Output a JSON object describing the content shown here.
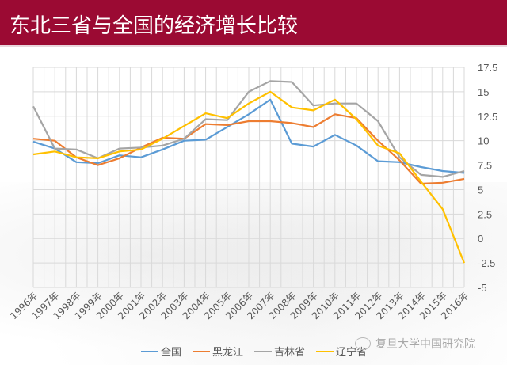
{
  "header": {
    "title": "东北三省与全国的经济增长比较",
    "background_color": "#9b0a33"
  },
  "credit": {
    "icon": "wechat-icon",
    "text": "复旦大学中国研究院"
  },
  "legend": [
    {
      "label": "全国",
      "color": "#5b9bd5"
    },
    {
      "label": "黑龙江",
      "color": "#ed7d31"
    },
    {
      "label": "吉林省",
      "color": "#a5a5a5"
    },
    {
      "label": "辽宁省",
      "color": "#ffc000"
    }
  ],
  "chart_data": {
    "type": "line",
    "title": "东北三省与全国的经济增长比较",
    "xlabel": "",
    "ylabel": "",
    "categories": [
      "1996年",
      "1997年",
      "1998年",
      "1999年",
      "2000年",
      "2001年",
      "2002年",
      "2003年",
      "2004年",
      "2005年",
      "2006年",
      "2007年",
      "2008年",
      "2009年",
      "2010年",
      "2011年",
      "2012年",
      "2013年",
      "2014年",
      "2015年",
      "2016年"
    ],
    "y_ticks": [
      "17.5",
      "15",
      "12.5",
      "10",
      "7.5",
      "5",
      "2.5",
      "0",
      "-2.5",
      "-5"
    ],
    "ylim": [
      -5,
      17.5
    ],
    "y_axis_position": "right",
    "grid": true,
    "legend_position": "bottom",
    "series": [
      {
        "name": "全国",
        "color": "#5b9bd5",
        "values": [
          9.9,
          9.2,
          7.8,
          7.7,
          8.5,
          8.3,
          9.1,
          10.0,
          10.1,
          11.4,
          12.7,
          14.2,
          9.7,
          9.4,
          10.6,
          9.5,
          7.9,
          7.8,
          7.3,
          6.9,
          6.7
        ]
      },
      {
        "name": "黑龙江",
        "color": "#ed7d31",
        "values": [
          10.2,
          10.0,
          8.3,
          7.5,
          8.2,
          9.3,
          10.3,
          10.2,
          11.7,
          11.6,
          12.0,
          12.0,
          11.8,
          11.4,
          12.7,
          12.3,
          10.0,
          8.0,
          5.6,
          5.7,
          6.1
        ]
      },
      {
        "name": "吉林省",
        "color": "#a5a5a5",
        "values": [
          13.5,
          9.2,
          9.1,
          8.2,
          9.2,
          9.3,
          9.5,
          10.2,
          12.2,
          12.1,
          15.0,
          16.1,
          16.0,
          13.6,
          13.8,
          13.8,
          12.0,
          8.3,
          6.5,
          6.3,
          6.9
        ]
      },
      {
        "name": "辽宁省",
        "color": "#ffc000",
        "values": [
          8.6,
          8.9,
          8.3,
          8.2,
          8.9,
          9.1,
          10.2,
          11.5,
          12.8,
          12.3,
          13.8,
          15.0,
          13.4,
          13.1,
          14.2,
          12.2,
          9.5,
          8.7,
          5.8,
          3.0,
          -2.5
        ]
      }
    ]
  }
}
